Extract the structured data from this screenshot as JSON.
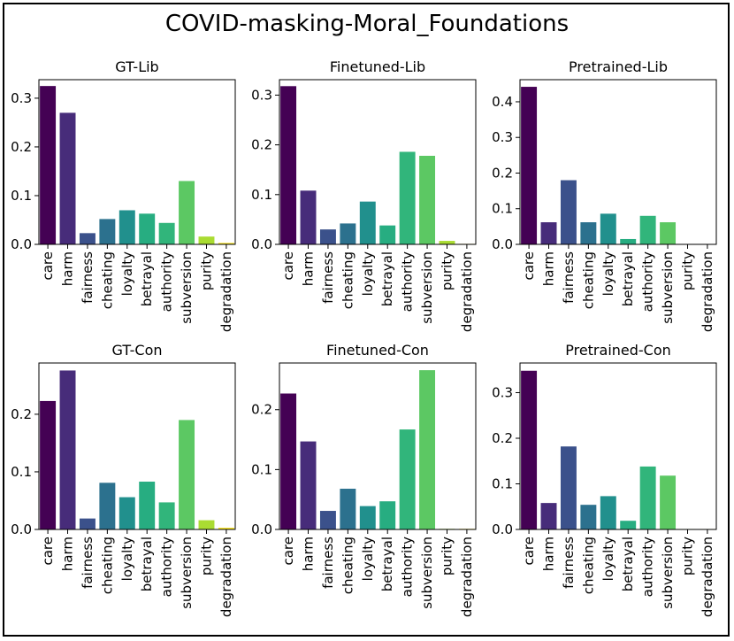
{
  "figure_title": "COVID-masking-Moral_Foundations",
  "colors": [
    "#440154",
    "#472c7a",
    "#3b518b",
    "#2c718e",
    "#21908d",
    "#27ad81",
    "#31b57b",
    "#5cc863",
    "#aadc32",
    "#fde725"
  ],
  "chart_data": [
    {
      "type": "bar",
      "title": "GT-Lib",
      "categories": [
        "care",
        "harm",
        "fairness",
        "cheating",
        "loyalty",
        "betrayal",
        "authority",
        "subversion",
        "purity",
        "degradation"
      ],
      "values": [
        0.325,
        0.27,
        0.023,
        0.052,
        0.07,
        0.063,
        0.044,
        0.13,
        0.016,
        0.003
      ],
      "ylim": [
        0,
        0.338
      ],
      "yticks": [
        0.0,
        0.1,
        0.2,
        0.3
      ],
      "ytick_labels": [
        "0.0",
        "0.1",
        "0.2",
        "0.3"
      ],
      "xlabel": "",
      "ylabel": ""
    },
    {
      "type": "bar",
      "title": "Finetuned-Lib",
      "categories": [
        "care",
        "harm",
        "fairness",
        "cheating",
        "loyalty",
        "betrayal",
        "authority",
        "subversion",
        "purity",
        "degradation"
      ],
      "values": [
        0.318,
        0.108,
        0.03,
        0.042,
        0.086,
        0.038,
        0.186,
        0.178,
        0.007,
        0.001
      ],
      "ylim": [
        0,
        0.331
      ],
      "yticks": [
        0.0,
        0.1,
        0.2,
        0.3
      ],
      "ytick_labels": [
        "0.0",
        "0.1",
        "0.2",
        "0.3"
      ],
      "xlabel": "",
      "ylabel": ""
    },
    {
      "type": "bar",
      "title": "Pretrained-Lib",
      "categories": [
        "care",
        "harm",
        "fairness",
        "cheating",
        "loyalty",
        "betrayal",
        "authority",
        "subversion",
        "purity",
        "degradation"
      ],
      "values": [
        0.442,
        0.062,
        0.18,
        0.062,
        0.086,
        0.015,
        0.08,
        0.062,
        0.001,
        0.001
      ],
      "ylim": [
        0,
        0.462
      ],
      "yticks": [
        0.0,
        0.1,
        0.2,
        0.3,
        0.4
      ],
      "ytick_labels": [
        "0.0",
        "0.1",
        "0.2",
        "0.3",
        "0.4"
      ],
      "xlabel": "",
      "ylabel": ""
    },
    {
      "type": "bar",
      "title": "GT-Con",
      "categories": [
        "care",
        "harm",
        "fairness",
        "cheating",
        "loyalty",
        "betrayal",
        "authority",
        "subversion",
        "purity",
        "degradation"
      ],
      "values": [
        0.223,
        0.276,
        0.019,
        0.081,
        0.056,
        0.083,
        0.047,
        0.19,
        0.016,
        0.003
      ],
      "ylim": [
        0,
        0.289
      ],
      "yticks": [
        0.0,
        0.1,
        0.2
      ],
      "ytick_labels": [
        "0.0",
        "0.1",
        "0.2"
      ],
      "xlabel": "",
      "ylabel": ""
    },
    {
      "type": "bar",
      "title": "Finetuned-Con",
      "categories": [
        "care",
        "harm",
        "fairness",
        "cheating",
        "loyalty",
        "betrayal",
        "authority",
        "subversion",
        "purity",
        "degradation"
      ],
      "values": [
        0.227,
        0.147,
        0.031,
        0.068,
        0.039,
        0.047,
        0.167,
        0.266,
        0.001,
        0.001
      ],
      "ylim": [
        0,
        0.278
      ],
      "yticks": [
        0.0,
        0.1,
        0.2
      ],
      "ytick_labels": [
        "0.0",
        "0.1",
        "0.2"
      ],
      "xlabel": "",
      "ylabel": ""
    },
    {
      "type": "bar",
      "title": "Pretrained-Con",
      "categories": [
        "care",
        "harm",
        "fairness",
        "cheating",
        "loyalty",
        "betrayal",
        "authority",
        "subversion",
        "purity",
        "degradation"
      ],
      "values": [
        0.348,
        0.058,
        0.182,
        0.054,
        0.073,
        0.019,
        0.138,
        0.118,
        0.001,
        0.001
      ],
      "ylim": [
        0,
        0.365
      ],
      "yticks": [
        0.0,
        0.1,
        0.2,
        0.3
      ],
      "ytick_labels": [
        "0.0",
        "0.1",
        "0.2",
        "0.3"
      ],
      "xlabel": "",
      "ylabel": ""
    }
  ]
}
